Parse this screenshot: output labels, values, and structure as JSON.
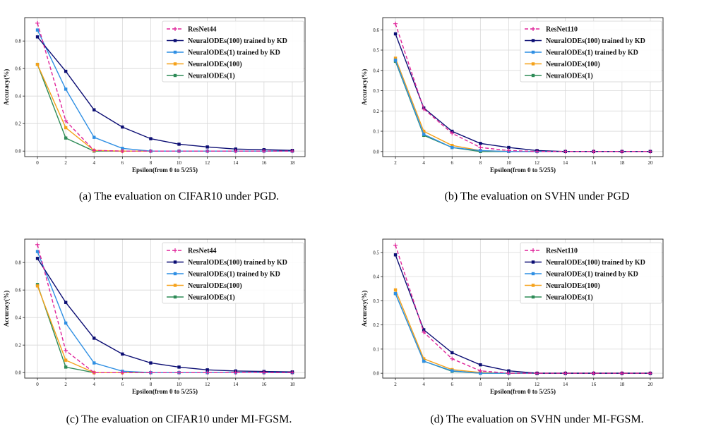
{
  "colors": {
    "ResNet": "#e0249a",
    "KD100": "#0b0d73",
    "KD1": "#2f8fe3",
    "ODE100": "#f5a21b",
    "ODE1": "#2e8b57",
    "grid": "#d8d8d8"
  },
  "chart_data": [
    {
      "type": "line",
      "caption": "(a)  The evaluation on CIFAR10 under PGD.",
      "xlabel": "Epsilon(from 0 to 5/255)",
      "ylabel": "Accuracy(%)",
      "x": [
        0,
        2,
        4,
        6,
        8,
        10,
        12,
        14,
        16,
        18
      ],
      "xlim": [
        -0.9,
        18.9
      ],
      "ylim": [
        -0.04,
        0.97
      ],
      "yticks": [
        "0.0",
        "0.2",
        "0.4",
        "0.6",
        "0.8"
      ],
      "xticks": [
        "0",
        "2",
        "4",
        "6",
        "8",
        "10",
        "12",
        "14",
        "16",
        "18"
      ],
      "series": [
        {
          "name": "ResNet44",
          "key": "ResNet",
          "style": "dashed",
          "marker": "plus",
          "values": [
            0.93,
            0.22,
            0.005,
            0.0,
            0.0,
            0.0,
            0.0,
            0.0,
            0.0,
            0.0
          ]
        },
        {
          "name": "NeuralODEs(100) trained by KD",
          "key": "KD100",
          "style": "solid",
          "marker": "square",
          "values": [
            0.83,
            0.58,
            0.3,
            0.175,
            0.09,
            0.05,
            0.03,
            0.015,
            0.01,
            0.005
          ]
        },
        {
          "name": "NeuralODEs(1) trained by KD",
          "key": "KD1",
          "style": "solid",
          "marker": "square",
          "values": [
            0.88,
            0.45,
            0.1,
            0.02,
            0.0,
            0.0,
            0.0,
            0.0,
            0.0,
            0.0
          ]
        },
        {
          "name": "NeuralODEs(100)",
          "key": "ODE100",
          "style": "solid",
          "marker": "square",
          "values": [
            0.63,
            0.17,
            0.005,
            0.0,
            0.0,
            0.0,
            0.0,
            0.0,
            0.0,
            0.0
          ]
        },
        {
          "name": "NeuralODEs(1)",
          "key": "ODE1",
          "style": "solid",
          "marker": "square",
          "values": [
            0.63,
            0.095,
            0.0,
            0.0,
            0.0,
            0.0,
            0.0,
            0.0,
            0.0,
            0.0
          ]
        }
      ]
    },
    {
      "type": "line",
      "caption": "(b)  The evaluation on SVHN under PGD",
      "xlabel": "Epsilon(from 0 to 5/255)",
      "ylabel": "Accuracy(%)",
      "x": [
        2,
        4,
        6,
        8,
        10,
        12,
        14,
        16,
        18,
        20
      ],
      "xlim": [
        1.1,
        20.9
      ],
      "ylim": [
        -0.025,
        0.66
      ],
      "yticks": [
        "0.0",
        "0.1",
        "0.2",
        "0.3",
        "0.4",
        "0.5",
        "0.6"
      ],
      "xticks": [
        "2",
        "4",
        "6",
        "8",
        "10",
        "12",
        "14",
        "16",
        "18",
        "20"
      ],
      "series": [
        {
          "name": "ResNet110",
          "key": "ResNet",
          "style": "dashed",
          "marker": "plus",
          "values": [
            0.63,
            0.21,
            0.09,
            0.02,
            0.005,
            0.0,
            0.0,
            0.0,
            0.0,
            0.0
          ]
        },
        {
          "name": "NeuralODEs(100) trained by KD",
          "key": "KD100",
          "style": "solid",
          "marker": "square",
          "values": [
            0.58,
            0.215,
            0.1,
            0.04,
            0.02,
            0.005,
            0.0,
            0.0,
            0.0,
            0.0
          ]
        },
        {
          "name": "NeuralODEs(1) trained by KD",
          "key": "KD1",
          "style": "solid",
          "marker": "square",
          "values": [
            0.45,
            0.085,
            0.02,
            0.005,
            0.0,
            0.0,
            0.0,
            0.0,
            0.0,
            0.0
          ]
        },
        {
          "name": "NeuralODEs(100)",
          "key": "ODE100",
          "style": "solid",
          "marker": "square",
          "values": [
            0.46,
            0.1,
            0.03,
            0.005,
            0.0,
            0.0,
            0.0,
            0.0,
            0.0,
            0.0
          ]
        },
        {
          "name": "NeuralODEs(1)",
          "key": "ODE1",
          "style": "solid",
          "marker": "square",
          "values": [
            0.445,
            0.08,
            0.02,
            0.0,
            0.0,
            0.0,
            0.0,
            0.0,
            0.0,
            0.0
          ]
        }
      ]
    },
    {
      "type": "line",
      "caption": "(c)  The evaluation on CIFAR10 under MI-FGSM.",
      "xlabel": "Epsilon(from 0 to 5/255)",
      "ylabel": "Accuracy(%)",
      "x": [
        0,
        2,
        4,
        6,
        8,
        10,
        12,
        14,
        16,
        18
      ],
      "xlim": [
        -0.9,
        18.9
      ],
      "ylim": [
        -0.04,
        0.97
      ],
      "yticks": [
        "0.0",
        "0.2",
        "0.4",
        "0.6",
        "0.8"
      ],
      "xticks": [
        "0",
        "2",
        "4",
        "6",
        "8",
        "10",
        "12",
        "14",
        "16",
        "18"
      ],
      "series": [
        {
          "name": "ResNet44",
          "key": "ResNet",
          "style": "dashed",
          "marker": "plus",
          "values": [
            0.93,
            0.16,
            0.0,
            0.0,
            0.0,
            0.0,
            0.0,
            0.0,
            0.0,
            0.0
          ]
        },
        {
          "name": "NeuralODEs(100) trained by KD",
          "key": "KD100",
          "style": "solid",
          "marker": "square",
          "values": [
            0.83,
            0.51,
            0.25,
            0.135,
            0.07,
            0.04,
            0.02,
            0.012,
            0.008,
            0.005
          ]
        },
        {
          "name": "NeuralODEs(1) trained by KD",
          "key": "KD1",
          "style": "solid",
          "marker": "square",
          "values": [
            0.88,
            0.36,
            0.07,
            0.01,
            0.0,
            0.0,
            0.0,
            0.0,
            0.0,
            0.0
          ]
        },
        {
          "name": "NeuralODEs(100)",
          "key": "ODE100",
          "style": "solid",
          "marker": "square",
          "values": [
            0.63,
            0.09,
            0.0,
            0.0,
            0.0,
            0.0,
            0.0,
            0.0,
            0.0,
            0.0
          ]
        },
        {
          "name": "NeuralODEs(1)",
          "key": "ODE1",
          "style": "solid",
          "marker": "square",
          "values": [
            0.64,
            0.04,
            0.0,
            0.0,
            0.0,
            0.0,
            0.0,
            0.0,
            0.0,
            0.0
          ]
        }
      ]
    },
    {
      "type": "line",
      "caption": "(d)  The evaluation on SVHN under MI-FGSM.",
      "xlabel": "Epsilon(from 0 to 5/255)",
      "ylabel": "Accuracy(%)",
      "x": [
        2,
        4,
        6,
        8,
        10,
        12,
        14,
        16,
        18,
        20
      ],
      "xlim": [
        1.1,
        20.9
      ],
      "ylim": [
        -0.02,
        0.555
      ],
      "yticks": [
        "0.0",
        "0.1",
        "0.2",
        "0.3",
        "0.4",
        "0.5"
      ],
      "xticks": [
        "2",
        "4",
        "6",
        "8",
        "10",
        "12",
        "14",
        "16",
        "18",
        "20"
      ],
      "series": [
        {
          "name": "ResNet110",
          "key": "ResNet",
          "style": "dashed",
          "marker": "plus",
          "values": [
            0.53,
            0.17,
            0.06,
            0.01,
            0.0,
            0.0,
            0.0,
            0.0,
            0.0,
            0.0
          ]
        },
        {
          "name": "NeuralODEs(100) trained by KD",
          "key": "KD100",
          "style": "solid",
          "marker": "square",
          "values": [
            0.49,
            0.18,
            0.085,
            0.035,
            0.01,
            0.0,
            0.0,
            0.0,
            0.0,
            0.0
          ]
        },
        {
          "name": "NeuralODEs(1) trained by KD",
          "key": "KD1",
          "style": "solid",
          "marker": "square",
          "values": [
            0.33,
            0.05,
            0.01,
            0.0,
            0.0,
            0.0,
            0.0,
            0.0,
            0.0,
            0.0
          ]
        },
        {
          "name": "NeuralODEs(100)",
          "key": "ODE100",
          "style": "solid",
          "marker": "square",
          "values": [
            0.345,
            0.06,
            0.015,
            0.003,
            0.0,
            0.0,
            0.0,
            0.0,
            0.0,
            0.0
          ]
        },
        {
          "name": "NeuralODEs(1)",
          "key": "ODE1",
          "style": "solid",
          "marker": "square",
          "values": [
            0.33,
            0.05,
            0.008,
            0.0,
            0.0,
            0.0,
            0.0,
            0.0,
            0.0,
            0.0
          ]
        }
      ]
    }
  ]
}
